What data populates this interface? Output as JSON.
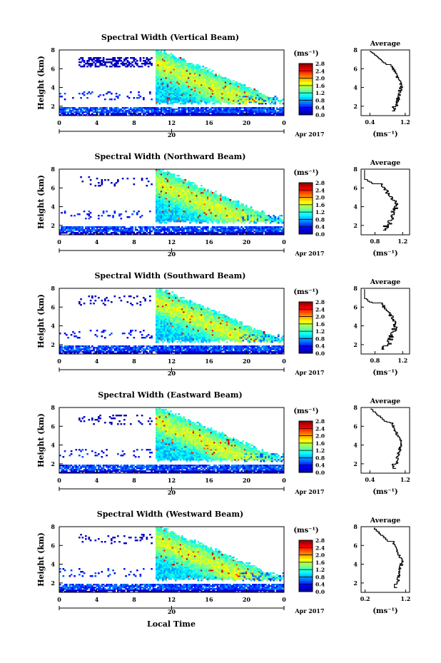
{
  "figure": {
    "xlabel_bottom": "Local Time",
    "date_label": "Apr 2017",
    "date_tick": "20"
  },
  "chart_data": [
    {
      "type": "heatmap",
      "title": "Spectral Width (Vertical Beam)",
      "ylabel": "Height (km)",
      "xlabel": "Local Time",
      "xticks": [
        "0",
        "4",
        "8",
        "12",
        "16",
        "20",
        "0"
      ],
      "yticks": [
        "2",
        "4",
        "6",
        "8"
      ],
      "ylim": [
        1,
        8
      ],
      "xlim": [
        0,
        24
      ],
      "colorbar": {
        "unit": "(ms⁻¹)",
        "ticks": [
          "0.0",
          "0.4",
          "0.8",
          "1.2",
          "1.6",
          "2.0",
          "2.4",
          "2.8"
        ],
        "range": [
          0,
          2.8
        ]
      },
      "average": {
        "title": "Average",
        "xlabel": "(ms⁻¹)",
        "xticks": [
          "0.4",
          "1.2"
        ],
        "xlim": [
          0.2,
          1.3
        ],
        "yticks": [
          "2",
          "4",
          "6",
          "8"
        ],
        "ylim": [
          1,
          8
        ]
      }
    },
    {
      "type": "heatmap",
      "title": "Spectral Width (Northward Beam)",
      "ylabel": "Height (km)",
      "xlabel": "Local Time",
      "xticks": [
        "0",
        "4",
        "8",
        "12",
        "16",
        "20",
        "0"
      ],
      "yticks": [
        "2",
        "4",
        "6",
        "8"
      ],
      "ylim": [
        1,
        8
      ],
      "xlim": [
        0,
        24
      ],
      "colorbar": {
        "unit": "(ms⁻¹)",
        "ticks": [
          "0.0",
          "0.4",
          "0.8",
          "1.2",
          "1.6",
          "2.0",
          "2.4",
          "2.8"
        ],
        "range": [
          0,
          2.8
        ]
      },
      "average": {
        "title": "Average",
        "xlabel": "(ms⁻¹)",
        "xticks": [
          "0.8",
          "1.2"
        ],
        "xlim": [
          0.6,
          1.3
        ],
        "yticks": [
          "2",
          "4",
          "6",
          "8"
        ],
        "ylim": [
          1,
          8
        ]
      }
    },
    {
      "type": "heatmap",
      "title": "Spectral Width (Southward Beam)",
      "ylabel": "Height (km)",
      "xlabel": "Local Time",
      "xticks": [
        "0",
        "4",
        "8",
        "12",
        "16",
        "20",
        "0"
      ],
      "yticks": [
        "2",
        "4",
        "6",
        "8"
      ],
      "ylim": [
        1,
        8
      ],
      "xlim": [
        0,
        24
      ],
      "colorbar": {
        "unit": "(ms⁻¹)",
        "ticks": [
          "0.0",
          "0.4",
          "0.8",
          "1.2",
          "1.6",
          "2.0",
          "2.4",
          "2.8"
        ],
        "range": [
          0,
          2.8
        ]
      },
      "average": {
        "title": "Average",
        "xlabel": "(ms⁻¹)",
        "xticks": [
          "0.8",
          "1.2"
        ],
        "xlim": [
          0.6,
          1.3
        ],
        "yticks": [
          "2",
          "4",
          "6",
          "8"
        ],
        "ylim": [
          1,
          8
        ]
      }
    },
    {
      "type": "heatmap",
      "title": "Spectral Width (Eastward Beam)",
      "ylabel": "Height (km)",
      "xlabel": "Local Time",
      "xticks": [
        "0",
        "4",
        "8",
        "12",
        "16",
        "20",
        "0"
      ],
      "yticks": [
        "2",
        "4",
        "6",
        "8"
      ],
      "ylim": [
        1,
        8
      ],
      "xlim": [
        0,
        24
      ],
      "colorbar": {
        "unit": "(ms⁻¹)",
        "ticks": [
          "0.0",
          "0.4",
          "0.8",
          "1.2",
          "1.6",
          "2.0",
          "2.4",
          "2.8"
        ],
        "range": [
          0,
          2.8
        ]
      },
      "average": {
        "title": "Average",
        "xlabel": "(ms⁻¹)",
        "xticks": [
          "0.4",
          "1.2"
        ],
        "xlim": [
          0.2,
          1.3
        ],
        "yticks": [
          "2",
          "4",
          "6",
          "8"
        ],
        "ylim": [
          1,
          8
        ]
      }
    },
    {
      "type": "heatmap",
      "title": "Spectral Width (Westward Beam)",
      "ylabel": "Height (km)",
      "xlabel": "Local Time",
      "xticks": [
        "0",
        "4",
        "8",
        "12",
        "16",
        "20",
        "0"
      ],
      "yticks": [
        "2",
        "4",
        "6",
        "8"
      ],
      "ylim": [
        1,
        8
      ],
      "xlim": [
        0,
        24
      ],
      "colorbar": {
        "unit": "(ms⁻¹)",
        "ticks": [
          "0.0",
          "0.4",
          "0.8",
          "1.2",
          "1.6",
          "2.0",
          "2.4",
          "2.8"
        ],
        "range": [
          0,
          2.8
        ]
      },
      "average": {
        "title": "Average",
        "xlabel": "(ms⁻¹)",
        "xticks": [
          "0.2",
          "1.2"
        ],
        "xlim": [
          0.1,
          1.3
        ],
        "yticks": [
          "2",
          "4",
          "6",
          "8"
        ],
        "ylim": [
          1,
          8
        ]
      }
    }
  ]
}
